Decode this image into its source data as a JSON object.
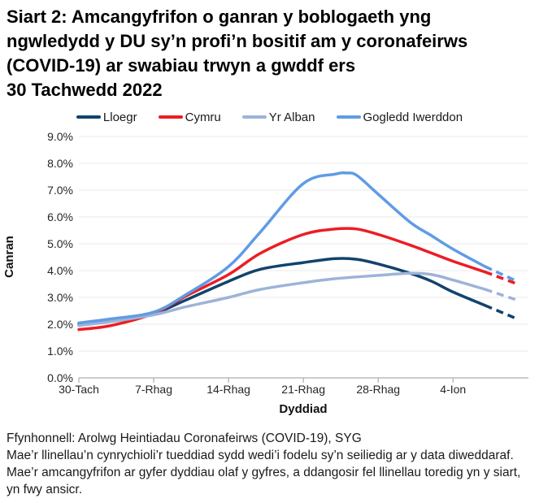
{
  "title_lines": [
    "Siart 2: Amcangyfrifon o ganran y boblogaeth yng",
    "ngwledydd y DU sy’n profi’n bositif am y coronafeirws",
    "(COVID-19) ar swabiau trwyn a gwddf ers",
    "30 Tachwedd 2022"
  ],
  "chart_data": {
    "type": "line",
    "title": "Siart 2: Amcangyfrifon o ganran y boblogaeth yng ngwledydd y DU sy’n profi’n bositif am y coronafeirws (COVID-19) ar swabiau trwyn a gwddf ers 30 Tachwedd 2022",
    "xlabel": "Dyddiad",
    "ylabel": "Canran",
    "x_tick_labels": [
      "30-Tach",
      "7-Rhag",
      "14-Rhag",
      "21-Rhag",
      "28-Rhag",
      "4-Ion"
    ],
    "x_tick_days": [
      0,
      7,
      14,
      21,
      28,
      35
    ],
    "ylim": [
      0,
      9
    ],
    "y_tick_step": 1,
    "y_tick_suffix": "%",
    "grid": "horizontal",
    "legend_position": "top",
    "dashed_from_day": 38,
    "series": [
      {
        "name": "Lloegr",
        "color": "#12436D",
        "points": [
          [
            0,
            2.0
          ],
          [
            3,
            2.1
          ],
          [
            7,
            2.4
          ],
          [
            10,
            2.9
          ],
          [
            14,
            3.6
          ],
          [
            17,
            4.05
          ],
          [
            21,
            4.3
          ],
          [
            24,
            4.45
          ],
          [
            26,
            4.42
          ],
          [
            28,
            4.25
          ],
          [
            31,
            3.9
          ],
          [
            33,
            3.6
          ],
          [
            35,
            3.2
          ],
          [
            38,
            2.7
          ],
          [
            41,
            2.2
          ]
        ]
      },
      {
        "name": "Cymru",
        "color": "#EC1D24",
        "points": [
          [
            0,
            1.8
          ],
          [
            3,
            1.95
          ],
          [
            7,
            2.4
          ],
          [
            10,
            3.05
          ],
          [
            14,
            3.85
          ],
          [
            17,
            4.65
          ],
          [
            21,
            5.35
          ],
          [
            24,
            5.55
          ],
          [
            26,
            5.55
          ],
          [
            28,
            5.35
          ],
          [
            31,
            4.95
          ],
          [
            33,
            4.65
          ],
          [
            35,
            4.35
          ],
          [
            38,
            3.95
          ],
          [
            41,
            3.5
          ]
        ]
      },
      {
        "name": "Yr Alban",
        "color": "#9DB3D8",
        "points": [
          [
            0,
            1.95
          ],
          [
            3,
            2.1
          ],
          [
            7,
            2.35
          ],
          [
            10,
            2.65
          ],
          [
            14,
            3.0
          ],
          [
            17,
            3.3
          ],
          [
            21,
            3.55
          ],
          [
            24,
            3.7
          ],
          [
            28,
            3.82
          ],
          [
            31,
            3.9
          ],
          [
            33,
            3.85
          ],
          [
            35,
            3.65
          ],
          [
            38,
            3.3
          ],
          [
            41,
            2.9
          ]
        ]
      },
      {
        "name": "Gogledd Iwerddon",
        "color": "#5F9CE4",
        "points": [
          [
            0,
            2.05
          ],
          [
            3,
            2.2
          ],
          [
            7,
            2.45
          ],
          [
            10,
            3.1
          ],
          [
            14,
            4.15
          ],
          [
            17,
            5.45
          ],
          [
            21,
            7.25
          ],
          [
            24,
            7.6
          ],
          [
            25,
            7.64
          ],
          [
            26,
            7.55
          ],
          [
            28,
            6.85
          ],
          [
            31,
            5.8
          ],
          [
            33,
            5.3
          ],
          [
            35,
            4.8
          ],
          [
            38,
            4.15
          ],
          [
            41,
            3.6
          ]
        ]
      }
    ]
  },
  "footer_lines": [
    "Ffynhonnell: Arolwg Heintiadau Coronafeirws (COVID-19), SYG",
    "Mae’r llinellau’n cynrychioli’r tueddiad sydd wedi’i fodelu sy’n seiliedig ar y data diweddaraf.",
    "Mae’r amcangyfrifon ar gyfer dyddiau olaf y gyfres, a ddangosir fel llinellau toredig yn y siart, yn fwy ansicr."
  ]
}
